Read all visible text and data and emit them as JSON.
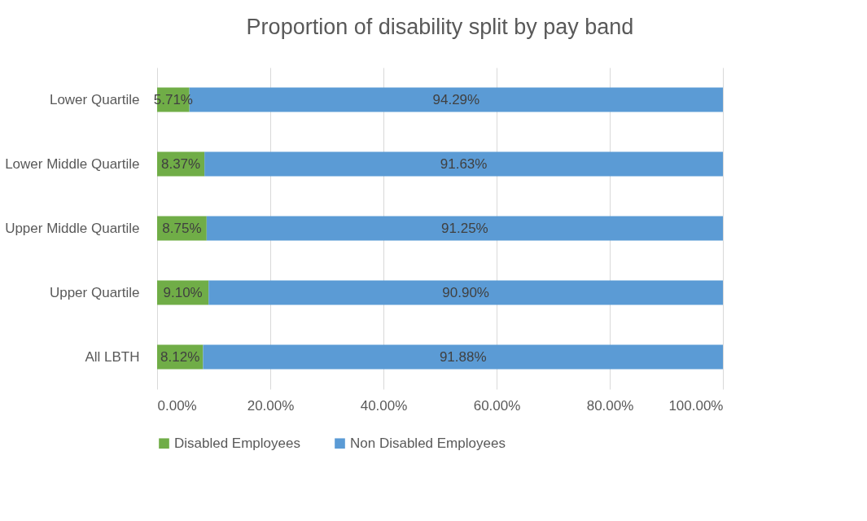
{
  "chart_data": {
    "type": "bar",
    "orientation": "horizontal",
    "stacked": true,
    "title": "Proportion of disability split by pay band",
    "categories": [
      "Lower Quartile",
      "Lower Middle Quartile",
      "Upper Middle Quartile",
      "Upper Quartile",
      "All LBTH"
    ],
    "series": [
      {
        "name": "Disabled Employees",
        "color": "#70ad47",
        "values": [
          5.71,
          8.37,
          8.75,
          9.1,
          8.12
        ],
        "value_labels": [
          "5.71%",
          "8.37%",
          "8.75%",
          "9.10%",
          "8.12%"
        ]
      },
      {
        "name": "Non Disabled Employees",
        "color": "#5b9bd5",
        "values": [
          94.29,
          91.63,
          91.25,
          90.9,
          91.88
        ],
        "value_labels": [
          "94.29%",
          "91.63%",
          "91.25%",
          "90.90%",
          "91.88%"
        ]
      }
    ],
    "xlim": [
      0,
      100
    ],
    "xticks": [
      {
        "value": 0,
        "label": "0.00%"
      },
      {
        "value": 20,
        "label": "20.00%"
      },
      {
        "value": 40,
        "label": "40.00%"
      },
      {
        "value": 60,
        "label": "60.00%"
      },
      {
        "value": 80,
        "label": "80.00%"
      },
      {
        "value": 100,
        "label": "100.00%"
      }
    ],
    "grid": "x",
    "legend": "bottom"
  }
}
